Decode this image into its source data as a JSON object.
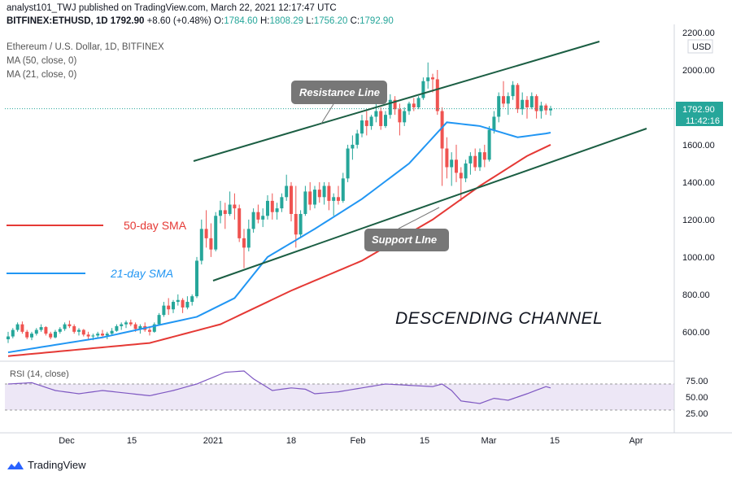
{
  "header": {
    "publisher": "analyst101_TWJ published on TradingView.com, March 22, 2021 12:17:47 UTC",
    "symbol": "BITFINEX:ETHUSD, 1D",
    "price": "1792.90",
    "change": "+8.60 (+0.48%)",
    "o_label": "O:",
    "o": "1784.60",
    "h_label": "H:",
    "h": "1808.29",
    "l_label": "L:",
    "l": "1756.20",
    "c_label": "C:",
    "c": "1792.90"
  },
  "legend": {
    "title": "Ethereum / U.S. Dollar, 1D, BITFINEX",
    "ma50": "MA (50, close, 0)",
    "ma21": "MA (21, close, 0)"
  },
  "price_axis": {
    "currency": "USD",
    "ticks": [
      "2200.00",
      "2000.00",
      "1800.00",
      "1600.00",
      "1400.00",
      "1200.00",
      "1000.00",
      "800.00",
      "600.00"
    ],
    "last_price": "1792.90",
    "countdown": "11:42:16"
  },
  "rsi": {
    "label": "RSI (14, close)",
    "ticks": [
      "75.00",
      "50.00",
      "25.00"
    ]
  },
  "time_axis": [
    "Dec",
    "15",
    "2021",
    "18",
    "Feb",
    "15",
    "Mar",
    "15",
    "Apr"
  ],
  "annotations": {
    "resistance": "Resistance Line",
    "support": "Support LIne",
    "sma50": "50-day SMA",
    "sma21": "21-day SMA",
    "channel": "DESCENDING CHANNEL"
  },
  "colors": {
    "up": "#26a69a",
    "down": "#ef5350",
    "ma50": "#e53935",
    "ma21": "#2196f3",
    "channel": "#1b5e43",
    "rsi": "#7e57c2",
    "rsi_band": "#ede7f6"
  },
  "footer": {
    "brand": "TradingView"
  },
  "chart_data": {
    "type": "candlestick",
    "title": "Ethereum / U.S. Dollar, 1D, BITFINEX",
    "ylim": [
      460,
      2200
    ],
    "dates_start": "2020-11-23",
    "ohlc": [
      [
        560,
        600,
        540,
        575
      ],
      [
        575,
        620,
        565,
        610
      ],
      [
        610,
        650,
        600,
        640
      ],
      [
        640,
        655,
        590,
        600
      ],
      [
        600,
        610,
        560,
        570
      ],
      [
        570,
        600,
        555,
        590
      ],
      [
        590,
        620,
        580,
        610
      ],
      [
        610,
        640,
        600,
        625
      ],
      [
        625,
        630,
        580,
        590
      ],
      [
        590,
        600,
        560,
        570
      ],
      [
        570,
        610,
        565,
        600
      ],
      [
        600,
        625,
        590,
        615
      ],
      [
        615,
        650,
        605,
        640
      ],
      [
        640,
        660,
        620,
        630
      ],
      [
        630,
        640,
        590,
        600
      ],
      [
        600,
        620,
        580,
        610
      ],
      [
        610,
        615,
        575,
        585
      ],
      [
        585,
        600,
        560,
        575
      ],
      [
        575,
        590,
        555,
        580
      ],
      [
        580,
        600,
        565,
        590
      ],
      [
        590,
        610,
        575,
        580
      ],
      [
        580,
        600,
        560,
        590
      ],
      [
        590,
        620,
        580,
        605
      ],
      [
        605,
        640,
        600,
        630
      ],
      [
        630,
        650,
        610,
        640
      ],
      [
        640,
        660,
        620,
        650
      ],
      [
        650,
        665,
        630,
        640
      ],
      [
        640,
        650,
        600,
        615
      ],
      [
        615,
        640,
        590,
        630
      ],
      [
        630,
        650,
        600,
        610
      ],
      [
        610,
        630,
        580,
        600
      ],
      [
        600,
        650,
        595,
        640
      ],
      [
        640,
        700,
        635,
        690
      ],
      [
        690,
        760,
        680,
        740
      ],
      [
        740,
        780,
        690,
        720
      ],
      [
        720,
        770,
        700,
        760
      ],
      [
        760,
        800,
        740,
        770
      ],
      [
        770,
        780,
        700,
        730
      ],
      [
        730,
        790,
        720,
        760
      ],
      [
        760,
        800,
        740,
        790
      ],
      [
        790,
        1000,
        780,
        980
      ],
      [
        980,
        1200,
        960,
        1150
      ],
      [
        1150,
        1250,
        1050,
        1100
      ],
      [
        1100,
        1180,
        1000,
        1040
      ],
      [
        1040,
        1240,
        1030,
        1220
      ],
      [
        1220,
        1300,
        1180,
        1250
      ],
      [
        1250,
        1290,
        1150,
        1230
      ],
      [
        1230,
        1350,
        1220,
        1280
      ],
      [
        1280,
        1340,
        1200,
        1260
      ],
      [
        1260,
        1280,
        1080,
        1100
      ],
      [
        1100,
        1150,
        940,
        1050
      ],
      [
        1050,
        1200,
        1030,
        1150
      ],
      [
        1150,
        1260,
        1130,
        1240
      ],
      [
        1240,
        1280,
        1180,
        1200
      ],
      [
        1200,
        1260,
        1160,
        1220
      ],
      [
        1220,
        1330,
        1200,
        1300
      ],
      [
        1300,
        1340,
        1200,
        1240
      ],
      [
        1240,
        1290,
        1200,
        1260
      ],
      [
        1260,
        1340,
        1240,
        1320
      ],
      [
        1320,
        1440,
        1300,
        1380
      ],
      [
        1380,
        1400,
        1190,
        1230
      ],
      [
        1230,
        1380,
        1050,
        1120
      ],
      [
        1120,
        1250,
        1100,
        1230
      ],
      [
        1230,
        1380,
        1220,
        1350
      ],
      [
        1350,
        1400,
        1250,
        1280
      ],
      [
        1280,
        1380,
        1260,
        1360
      ],
      [
        1360,
        1400,
        1290,
        1320
      ],
      [
        1320,
        1400,
        1280,
        1380
      ],
      [
        1380,
        1400,
        1250,
        1300
      ],
      [
        1300,
        1340,
        1220,
        1320
      ],
      [
        1320,
        1380,
        1280,
        1300
      ],
      [
        1300,
        1450,
        1290,
        1420
      ],
      [
        1420,
        1600,
        1400,
        1580
      ],
      [
        1580,
        1650,
        1520,
        1600
      ],
      [
        1600,
        1680,
        1580,
        1660
      ],
      [
        1660,
        1760,
        1640,
        1730
      ],
      [
        1730,
        1780,
        1650,
        1700
      ],
      [
        1700,
        1760,
        1680,
        1750
      ],
      [
        1750,
        1820,
        1720,
        1780
      ],
      [
        1780,
        1800,
        1680,
        1700
      ],
      [
        1700,
        1780,
        1690,
        1760
      ],
      [
        1760,
        1870,
        1740,
        1840
      ],
      [
        1840,
        1860,
        1760,
        1790
      ],
      [
        1790,
        1820,
        1650,
        1720
      ],
      [
        1720,
        1800,
        1700,
        1780
      ],
      [
        1780,
        1830,
        1760,
        1820
      ],
      [
        1820,
        1850,
        1780,
        1800
      ],
      [
        1800,
        1860,
        1790,
        1850
      ],
      [
        1850,
        1960,
        1840,
        1940
      ],
      [
        1940,
        2040,
        1900,
        1960
      ],
      [
        1960,
        1980,
        1880,
        1950
      ],
      [
        1950,
        2000,
        1760,
        1780
      ],
      [
        1780,
        1800,
        1380,
        1580
      ],
      [
        1580,
        1640,
        1420,
        1480
      ],
      [
        1480,
        1560,
        1380,
        1520
      ],
      [
        1520,
        1600,
        1400,
        1450
      ],
      [
        1450,
        1480,
        1300,
        1420
      ],
      [
        1420,
        1520,
        1400,
        1500
      ],
      [
        1500,
        1560,
        1440,
        1540
      ],
      [
        1540,
        1580,
        1460,
        1480
      ],
      [
        1480,
        1580,
        1460,
        1560
      ],
      [
        1560,
        1600,
        1480,
        1520
      ],
      [
        1520,
        1700,
        1510,
        1680
      ],
      [
        1680,
        1780,
        1660,
        1750
      ],
      [
        1750,
        1880,
        1720,
        1860
      ],
      [
        1860,
        1940,
        1800,
        1820
      ],
      [
        1820,
        1880,
        1760,
        1860
      ],
      [
        1860,
        1940,
        1840,
        1920
      ],
      [
        1920,
        1930,
        1770,
        1790
      ],
      [
        1790,
        1880,
        1760,
        1840
      ],
      [
        1840,
        1860,
        1740,
        1800
      ],
      [
        1800,
        1880,
        1790,
        1860
      ],
      [
        1860,
        1870,
        1740,
        1780
      ],
      [
        1780,
        1830,
        1740,
        1810
      ],
      [
        1810,
        1820,
        1760,
        1784
      ],
      [
        1784,
        1808,
        1756,
        1793
      ]
    ],
    "ma50_anchor": [
      [
        0,
        470
      ],
      [
        30,
        540
      ],
      [
        45,
        640
      ],
      [
        60,
        820
      ],
      [
        75,
        980
      ],
      [
        90,
        1200
      ],
      [
        100,
        1380
      ],
      [
        110,
        1540
      ],
      [
        120,
        1660
      ],
      [
        125,
        1720
      ]
    ],
    "ma21_anchor": [
      [
        0,
        490
      ],
      [
        20,
        570
      ],
      [
        40,
        680
      ],
      [
        48,
        780
      ],
      [
        55,
        1000
      ],
      [
        65,
        1150
      ],
      [
        75,
        1310
      ],
      [
        85,
        1500
      ],
      [
        93,
        1720
      ],
      [
        100,
        1700
      ],
      [
        108,
        1640
      ],
      [
        114,
        1660
      ],
      [
        118,
        1680
      ],
      [
        125,
        1740
      ]
    ],
    "rsi_anchor": [
      [
        0,
        70
      ],
      [
        5,
        72
      ],
      [
        10,
        60
      ],
      [
        15,
        55
      ],
      [
        20,
        60
      ],
      [
        25,
        56
      ],
      [
        30,
        52
      ],
      [
        35,
        60
      ],
      [
        40,
        70
      ],
      [
        46,
        88
      ],
      [
        50,
        90
      ],
      [
        52,
        78
      ],
      [
        56,
        60
      ],
      [
        60,
        64
      ],
      [
        63,
        62
      ],
      [
        65,
        55
      ],
      [
        70,
        58
      ],
      [
        75,
        64
      ],
      [
        80,
        70
      ],
      [
        85,
        68
      ],
      [
        90,
        66
      ],
      [
        92,
        70
      ],
      [
        94,
        60
      ],
      [
        96,
        44
      ],
      [
        100,
        40
      ],
      [
        103,
        48
      ],
      [
        106,
        45
      ],
      [
        110,
        55
      ],
      [
        114,
        66
      ],
      [
        117,
        60
      ],
      [
        120,
        56
      ],
      [
        125,
        56
      ]
    ],
    "rsi_ylim": [
      0,
      100
    ]
  }
}
